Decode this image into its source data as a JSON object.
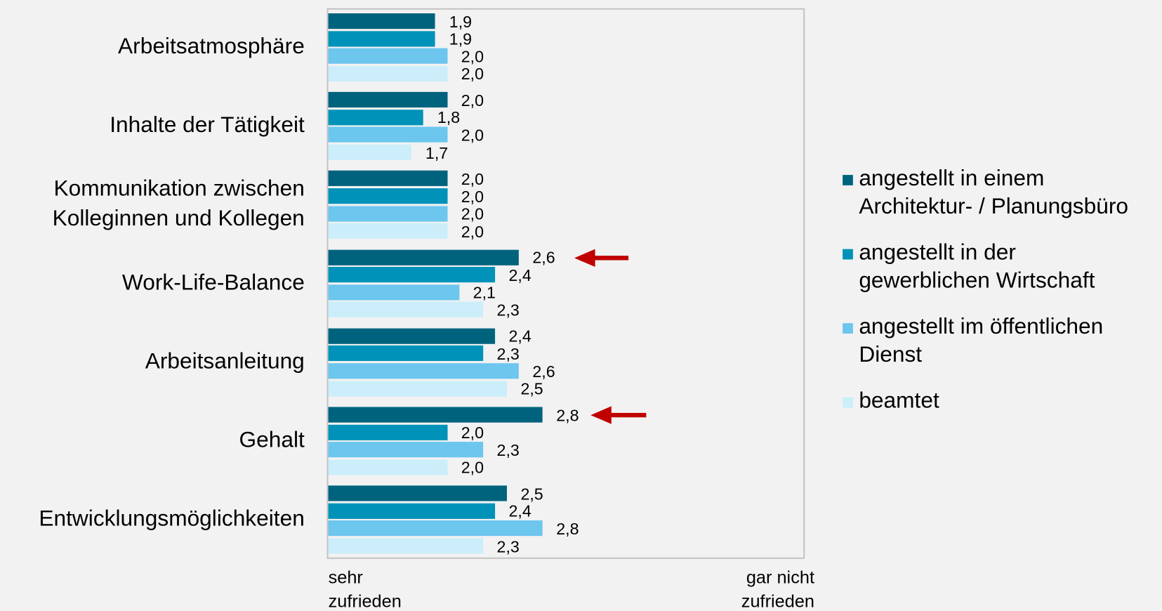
{
  "chart_data": {
    "type": "barh",
    "categories": [
      "Arbeitsatmosphäre",
      "Inhalte der Tätigkeit",
      "Kommunikation zwischen\nKolleginnen und Kollegen",
      "Work-Life-Balance",
      "Arbeitsanleitung",
      "Gehalt",
      "Entwicklungsmöglichkeiten"
    ],
    "series": [
      {
        "name": "angestellt in einem\nArchitektur- / Planungsbüro",
        "color": "#00637e",
        "values": [
          1.9,
          2.0,
          2.0,
          2.6,
          2.4,
          2.8,
          2.5
        ],
        "value_labels": [
          "1,9",
          "2,0",
          "2,0",
          "2,6",
          "2,4",
          "2,8",
          "2,5"
        ]
      },
      {
        "name": "angestellt in der\ngewerblichen Wirtschaft",
        "color": "#0092b8",
        "values": [
          1.9,
          1.8,
          2.0,
          2.4,
          2.3,
          2.0,
          2.4
        ],
        "value_labels": [
          "1,9",
          "1,8",
          "2,0",
          "2,4",
          "2,3",
          "2,0",
          "2,4"
        ]
      },
      {
        "name": "angestellt im öffentlichen\nDienst",
        "color": "#6cc6ee",
        "values": [
          2.0,
          2.0,
          2.0,
          2.1,
          2.6,
          2.3,
          2.8
        ],
        "value_labels": [
          "2,0",
          "2,0",
          "2,0",
          "2,1",
          "2,6",
          "2,3",
          "2,8"
        ]
      },
      {
        "name": "beamtet",
        "color": "#cbeefa",
        "values": [
          2.0,
          1.7,
          2.0,
          2.3,
          2.5,
          2.0,
          2.3
        ],
        "value_labels": [
          "2,0",
          "1,7",
          "2,0",
          "2,3",
          "2,5",
          "2,0",
          "2,3"
        ]
      }
    ],
    "xlim": [
      1,
      5
    ],
    "x_min_label": "sehr\nzufrieden",
    "x_max_label": "gar nicht\nzufrieden"
  }
}
